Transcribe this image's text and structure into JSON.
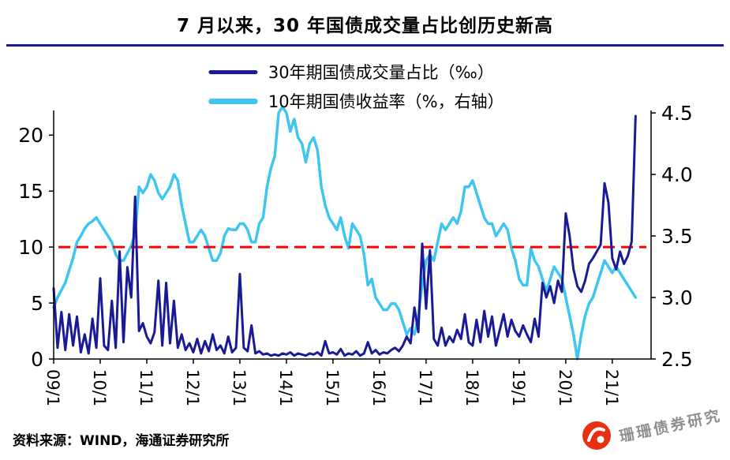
{
  "title": "7 月以来，30 年国债成交量占比创历史新高",
  "source": "资料来源：WIND，海通证券研究所",
  "watermark": "珊珊债券研究",
  "colors": {
    "navy": "#1a1a96",
    "cyan": "#3ec6f0",
    "red_dash": "#fe0000",
    "axis": "#000000",
    "watermark_gray": "#8f8f8f",
    "logo_red": "#e53012"
  },
  "legend": [
    {
      "label": "30年期国债成交量占比（‰）",
      "color": "#1a1a96"
    },
    {
      "label": "10年期国债收益率（%，右轴）",
      "color": "#3ec6f0"
    }
  ],
  "chart_data": {
    "type": "line",
    "title": "7 月以来，30 年国债成交量占比创历史新高",
    "x_start": "2009/01",
    "x_end": "2021/07",
    "frequency": "monthly",
    "x_tick_labels": [
      "09/1",
      "10/1",
      "11/1",
      "12/1",
      "13/1",
      "14/1",
      "15/1",
      "16/1",
      "17/1",
      "18/1",
      "19/1",
      "20/1",
      "21/1"
    ],
    "left_axis": {
      "ticks": [
        "0",
        "5",
        "10",
        "15",
        "20"
      ],
      "range": [
        0,
        22.2
      ]
    },
    "right_axis": {
      "ticks": [
        "2.5",
        "3.0",
        "3.5",
        "4.0",
        "4.5"
      ],
      "range": [
        2.5,
        4.52
      ]
    },
    "reference_line": {
      "axis": "left",
      "value": 10,
      "color": "#fe0000",
      "style": "dashed"
    },
    "grid": false,
    "legend_position": "top-center",
    "series": [
      {
        "name": "30年期国债成交量占比（‰）",
        "axis": "left",
        "color": "#1a1a96",
        "values": [
          6.3,
          1.0,
          4.2,
          0.8,
          4.0,
          1.2,
          3.8,
          0.6,
          2.2,
          0.5,
          3.6,
          1.0,
          7.2,
          1.2,
          0.8,
          5.2,
          1.0,
          9.6,
          1.5,
          8.2,
          5.5,
          14.5,
          2.5,
          3.2,
          2.0,
          1.4,
          2.4,
          7.0,
          1.2,
          6.8,
          1.4,
          5.2,
          1.0,
          2.2,
          0.8,
          1.4,
          0.6,
          1.8,
          0.5,
          1.6,
          0.7,
          2.2,
          0.8,
          1.2,
          0.5,
          2.0,
          0.6,
          1.0,
          7.6,
          1.0,
          0.7,
          3.0,
          0.5,
          0.7,
          0.4,
          0.5,
          0.3,
          0.4,
          0.3,
          0.5,
          0.4,
          0.6,
          0.3,
          0.5,
          0.4,
          0.3,
          0.5,
          0.4,
          0.6,
          0.3,
          1.6,
          0.5,
          0.6,
          0.4,
          0.9,
          0.3,
          0.5,
          0.4,
          0.7,
          0.3,
          0.5,
          1.5,
          0.5,
          0.8,
          0.4,
          0.6,
          0.5,
          0.8,
          1.0,
          0.7,
          1.2,
          2.0,
          1.4,
          4.6,
          2.4,
          10.3,
          4.5,
          9.7,
          1.8,
          1.2,
          2.8,
          1.2,
          2.0,
          1.5,
          2.6,
          1.8,
          4.0,
          1.5,
          1.2,
          3.5,
          1.5,
          4.3,
          2.0,
          3.8,
          1.2,
          2.6,
          4.0,
          2.0,
          3.5,
          2.5,
          2.0,
          3.0,
          2.2,
          1.5,
          3.6,
          2.0,
          6.8,
          5.5,
          6.5,
          5.0,
          7.0,
          6.0,
          13.0,
          11.0,
          8.0,
          6.5,
          6.0,
          7.0,
          8.5,
          9.0,
          9.6,
          10.2,
          15.7,
          14.0,
          9.0,
          8.0,
          9.6,
          8.5,
          9.2,
          10.5,
          21.7
        ]
      },
      {
        "name": "10年期国债收益率（%，右轴）",
        "axis": "right",
        "color": "#3ec6f0",
        "values": [
          2.92,
          3.0,
          3.06,
          3.12,
          3.22,
          3.32,
          3.45,
          3.5,
          3.56,
          3.6,
          3.62,
          3.65,
          3.6,
          3.55,
          3.5,
          3.45,
          3.35,
          3.3,
          3.3,
          3.36,
          3.42,
          3.52,
          3.9,
          3.85,
          3.9,
          4.0,
          3.95,
          3.85,
          3.8,
          3.85,
          3.9,
          4.0,
          3.95,
          3.75,
          3.6,
          3.45,
          3.45,
          3.5,
          3.55,
          3.5,
          3.4,
          3.3,
          3.3,
          3.36,
          3.5,
          3.56,
          3.55,
          3.55,
          3.6,
          3.6,
          3.55,
          3.45,
          3.45,
          3.6,
          3.65,
          3.9,
          4.05,
          4.15,
          4.5,
          4.55,
          4.5,
          4.35,
          4.45,
          4.3,
          4.25,
          4.1,
          4.25,
          4.3,
          4.2,
          3.9,
          3.75,
          3.65,
          3.6,
          3.55,
          3.65,
          3.5,
          3.4,
          3.6,
          3.55,
          3.5,
          3.35,
          3.1,
          3.15,
          3.0,
          2.95,
          2.9,
          2.9,
          2.95,
          2.95,
          2.9,
          2.8,
          2.7,
          2.75,
          2.7,
          2.85,
          3.1,
          3.3,
          3.35,
          3.3,
          3.45,
          3.6,
          3.55,
          3.6,
          3.65,
          3.6,
          3.7,
          3.9,
          3.9,
          3.95,
          3.85,
          3.75,
          3.65,
          3.6,
          3.6,
          3.5,
          3.55,
          3.6,
          3.55,
          3.4,
          3.3,
          3.15,
          3.1,
          3.1,
          3.4,
          3.3,
          3.25,
          3.15,
          3.05,
          3.15,
          3.25,
          3.2,
          3.15,
          3.0,
          2.85,
          2.7,
          2.5,
          2.7,
          2.85,
          2.95,
          3.0,
          3.1,
          3.2,
          3.3,
          3.25,
          3.2,
          3.25,
          3.2,
          3.15,
          3.1,
          3.05,
          3.0
        ]
      }
    ]
  }
}
